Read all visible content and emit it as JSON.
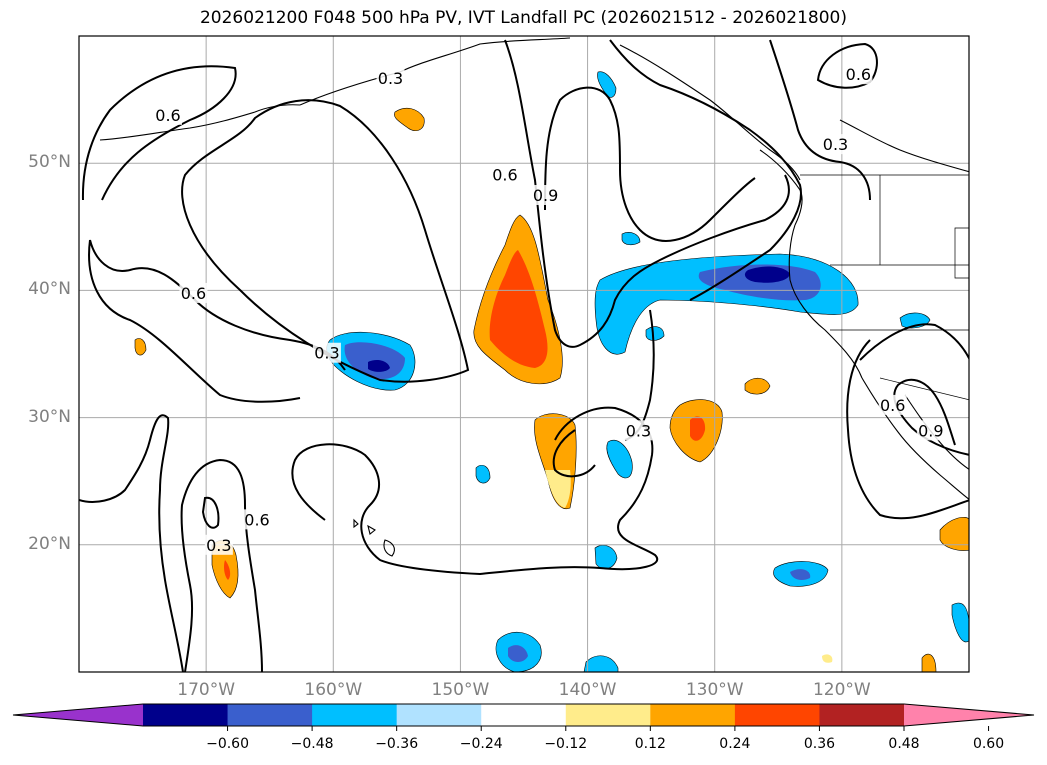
{
  "title": "2026021200 F048 500 hPa PV, IVT Landfall PC (2026021512 - 2026021800)",
  "map": {
    "lon_range": [
      -180,
      -110
    ],
    "lat_range": [
      10,
      60
    ],
    "lat_ticks": [
      {
        "value": 20,
        "label": "20°N"
      },
      {
        "value": 30,
        "label": "30°N"
      },
      {
        "value": 40,
        "label": "40°N"
      },
      {
        "value": 50,
        "label": "50°N"
      }
    ],
    "lon_ticks": [
      {
        "value": -170,
        "label": "170°W"
      },
      {
        "value": -160,
        "label": "160°W"
      },
      {
        "value": -150,
        "label": "150°W"
      },
      {
        "value": -140,
        "label": "140°W"
      },
      {
        "value": -130,
        "label": "130°W"
      },
      {
        "value": -120,
        "label": "120°W"
      }
    ],
    "grid": true,
    "contour_labels": [
      {
        "text": "0.6",
        "lon": -173,
        "lat": 53.8
      },
      {
        "text": "0.3",
        "lon": -155.5,
        "lat": 56.7
      },
      {
        "text": "0.6",
        "lon": -171,
        "lat": 39.8
      },
      {
        "text": "0.3",
        "lon": -160.5,
        "lat": 35.1
      },
      {
        "text": "0.6",
        "lon": -146.5,
        "lat": 49.1
      },
      {
        "text": "0.9",
        "lon": -143.3,
        "lat": 47.5
      },
      {
        "text": "0.3",
        "lon": -120.5,
        "lat": 51.5
      },
      {
        "text": "0.6",
        "lon": -118.7,
        "lat": 57
      },
      {
        "text": "0.3",
        "lon": -136,
        "lat": 29
      },
      {
        "text": "0.6",
        "lon": -116,
        "lat": 31
      },
      {
        "text": "0.9",
        "lon": -113,
        "lat": 29
      },
      {
        "text": "0.6",
        "lon": -166,
        "lat": 22
      },
      {
        "text": "0.3",
        "lon": -169,
        "lat": 20
      }
    ]
  },
  "colorbar": {
    "colors": [
      "#9932cc",
      "#00008b",
      "#3a5fcd",
      "#00bfff",
      "#b0e2ff",
      "#ffffff",
      "#ffec8b",
      "#ffa500",
      "#ff4500",
      "#b22222",
      "#ff82ab"
    ],
    "ticks": [
      "−0.60",
      "−0.48",
      "−0.36",
      "−0.24",
      "−0.12",
      "0.12",
      "0.24",
      "0.36",
      "0.48",
      "0.60"
    ]
  }
}
